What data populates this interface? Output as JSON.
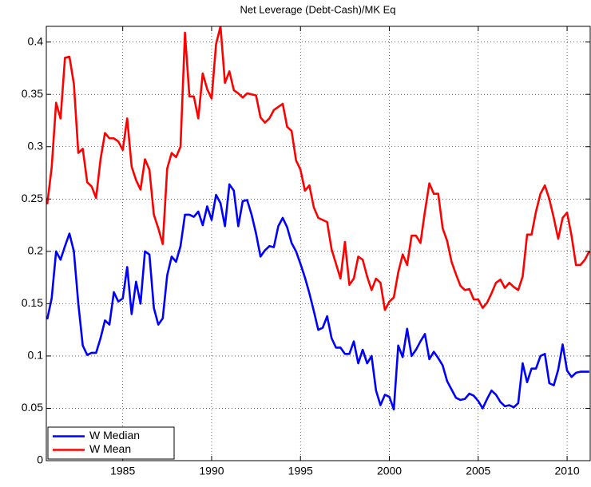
{
  "chart_data": {
    "type": "line",
    "title": "Net Leverage (Debt-Cash)/MK Eq",
    "x": [
      1980.75,
      1981,
      1981.25,
      1981.5,
      1981.75,
      1982,
      1982.25,
      1982.5,
      1982.75,
      1983,
      1983.25,
      1983.5,
      1983.75,
      1984,
      1984.25,
      1984.5,
      1984.75,
      1985,
      1985.25,
      1985.5,
      1985.75,
      1986,
      1986.25,
      1986.5,
      1986.75,
      1987,
      1987.25,
      1987.5,
      1987.75,
      1988,
      1988.25,
      1988.5,
      1988.75,
      1989,
      1989.25,
      1989.5,
      1989.75,
      1990,
      1990.25,
      1990.5,
      1990.75,
      1991,
      1991.25,
      1991.5,
      1991.75,
      1992,
      1992.25,
      1992.5,
      1992.75,
      1993,
      1993.25,
      1993.5,
      1993.75,
      1994,
      1994.25,
      1994.5,
      1994.75,
      1995,
      1995.25,
      1995.5,
      1995.75,
      1996,
      1996.25,
      1996.5,
      1996.75,
      1997,
      1997.25,
      1997.5,
      1997.75,
      1998,
      1998.25,
      1998.5,
      1998.75,
      1999,
      1999.25,
      1999.5,
      1999.75,
      2000,
      2000.25,
      2000.5,
      2000.75,
      2001,
      2001.25,
      2001.5,
      2001.75,
      2002,
      2002.25,
      2002.5,
      2002.75,
      2003,
      2003.25,
      2003.5,
      2003.75,
      2004,
      2004.25,
      2004.5,
      2004.75,
      2005,
      2005.25,
      2005.5,
      2005.75,
      2006,
      2006.25,
      2006.5,
      2006.75,
      2007,
      2007.25,
      2007.5,
      2007.75,
      2008,
      2008.25,
      2008.5,
      2008.75,
      2009,
      2009.25,
      2009.5,
      2009.75,
      2010,
      2010.25,
      2010.5,
      2010.75,
      2011,
      2011.25
    ],
    "series": [
      {
        "name": "W Median",
        "color": "#0000ff",
        "values": [
          0.135,
          0.155,
          0.2,
          0.192,
          0.205,
          0.217,
          0.2,
          0.15,
          0.11,
          0.101,
          0.103,
          0.103,
          0.117,
          0.134,
          0.13,
          0.161,
          0.152,
          0.155,
          0.185,
          0.14,
          0.171,
          0.15,
          0.2,
          0.197,
          0.146,
          0.13,
          0.136,
          0.177,
          0.195,
          0.19,
          0.205,
          0.235,
          0.235,
          0.233,
          0.238,
          0.225,
          0.243,
          0.23,
          0.254,
          0.246,
          0.224,
          0.264,
          0.258,
          0.224,
          0.248,
          0.249,
          0.235,
          0.217,
          0.195,
          0.201,
          0.205,
          0.204,
          0.224,
          0.232,
          0.223,
          0.208,
          0.2,
          0.188,
          0.175,
          0.16,
          0.143,
          0.125,
          0.127,
          0.138,
          0.117,
          0.108,
          0.108,
          0.102,
          0.102,
          0.114,
          0.093,
          0.106,
          0.093,
          0.1,
          0.067,
          0.053,
          0.063,
          0.061,
          0.049,
          0.11,
          0.099,
          0.126,
          0.1,
          0.106,
          0.114,
          0.121,
          0.097,
          0.104,
          0.098,
          0.091,
          0.076,
          0.068,
          0.06,
          0.058,
          0.059,
          0.064,
          0.062,
          0.057,
          0.05,
          0.059,
          0.067,
          0.063,
          0.056,
          0.052,
          0.053,
          0.051,
          0.055,
          0.093,
          0.075,
          0.088,
          0.088,
          0.1,
          0.102,
          0.074,
          0.072,
          0.087,
          0.111,
          0.086,
          0.08,
          0.084,
          0.085,
          0.085,
          0.085
        ]
      },
      {
        "name": "W Mean",
        "color": "#ff0000",
        "values": [
          0.245,
          0.28,
          0.342,
          0.327,
          0.385,
          0.386,
          0.36,
          0.294,
          0.298,
          0.266,
          0.262,
          0.251,
          0.288,
          0.313,
          0.308,
          0.308,
          0.305,
          0.297,
          0.327,
          0.281,
          0.268,
          0.259,
          0.288,
          0.278,
          0.235,
          0.222,
          0.207,
          0.279,
          0.294,
          0.29,
          0.3,
          0.409,
          0.348,
          0.348,
          0.327,
          0.37,
          0.355,
          0.346,
          0.398,
          0.415,
          0.361,
          0.372,
          0.354,
          0.351,
          0.347,
          0.351,
          0.35,
          0.349,
          0.328,
          0.323,
          0.327,
          0.335,
          0.338,
          0.341,
          0.319,
          0.315,
          0.287,
          0.278,
          0.258,
          0.263,
          0.242,
          0.232,
          0.23,
          0.228,
          0.202,
          0.188,
          0.174,
          0.209,
          0.168,
          0.174,
          0.195,
          0.192,
          0.176,
          0.163,
          0.174,
          0.17,
          0.144,
          0.152,
          0.156,
          0.18,
          0.197,
          0.187,
          0.215,
          0.215,
          0.208,
          0.238,
          0.265,
          0.255,
          0.255,
          0.222,
          0.21,
          0.19,
          0.178,
          0.167,
          0.163,
          0.164,
          0.154,
          0.154,
          0.146,
          0.151,
          0.16,
          0.17,
          0.173,
          0.165,
          0.17,
          0.166,
          0.163,
          0.176,
          0.216,
          0.216,
          0.238,
          0.255,
          0.263,
          0.25,
          0.232,
          0.212,
          0.232,
          0.237,
          0.215,
          0.187,
          0.187,
          0.192,
          0.2
        ]
      }
    ],
    "xlim": [
      1980.7,
      2011.3
    ],
    "xticks": [
      1985,
      1990,
      1995,
      2000,
      2005,
      2010
    ],
    "ylim": [
      0,
      0.415
    ],
    "yticks": [
      0,
      0.05,
      0.1,
      0.15,
      0.2,
      0.25,
      0.3,
      0.35,
      0.4
    ],
    "grid": true,
    "legend": "lower left"
  }
}
